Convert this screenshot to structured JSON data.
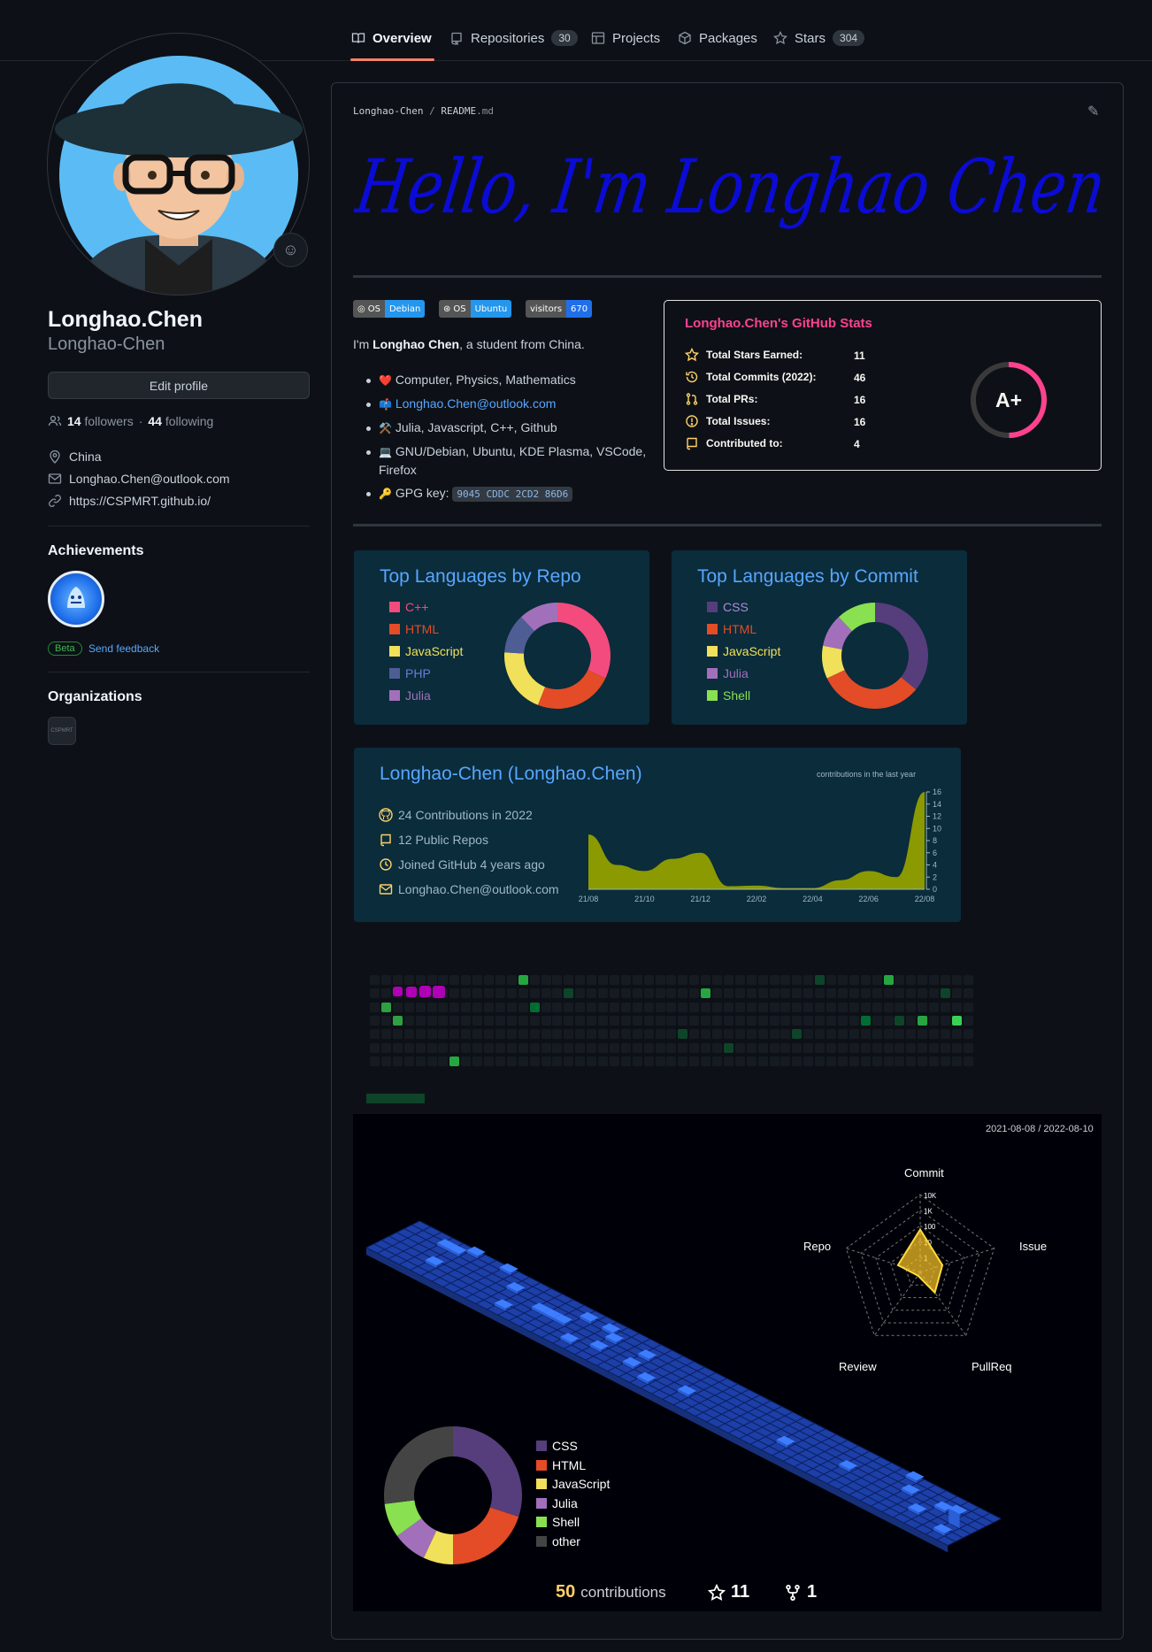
{
  "nav": {
    "tabs": [
      {
        "label": "Overview"
      },
      {
        "label": "Repositories",
        "count": "30"
      },
      {
        "label": "Projects"
      },
      {
        "label": "Packages"
      },
      {
        "label": "Stars",
        "count": "304"
      }
    ]
  },
  "profile": {
    "name": "Longhao.Chen",
    "login": "Longhao-Chen",
    "edit_label": "Edit profile",
    "followers": "14",
    "followers_label": "followers",
    "following": "44",
    "following_label": "following",
    "location": "China",
    "email": "Longhao.Chen@outlook.com",
    "website": "https://CSPMRT.github.io/"
  },
  "achievements": {
    "heading": "Achievements",
    "beta": "Beta",
    "feedback": "Send feedback"
  },
  "organizations": {
    "heading": "Organizations",
    "org_label": "CSPMRT"
  },
  "readme": {
    "path_owner": "Longhao-Chen",
    "path_sep": "/",
    "path_file": "README",
    "path_ext": ".md",
    "hello": "Hello, I'm Longhao Chen",
    "shields": [
      {
        "left": "OS",
        "right": "Debian",
        "color": "#2496ed"
      },
      {
        "left": "OS",
        "right": "Ubuntu",
        "color": "#2496ed"
      },
      {
        "left": "visitors",
        "right": "670",
        "color": "#1f6feb"
      }
    ],
    "intro_prefix": "I'm ",
    "intro_name": "Longhao Chen",
    "intro_suffix": ", a student from China.",
    "bullets": [
      {
        "emoji": "❤️",
        "text": "Computer, Physics, Mathematics"
      },
      {
        "emoji": "📫",
        "text": "Longhao.Chen@outlook.com"
      },
      {
        "emoji": "⚒️",
        "text": "Julia, Javascript, C++, Github"
      },
      {
        "emoji": "💻",
        "text": "GNU/Debian, Ubuntu, KDE Plasma, VSCode,",
        "text2": "Firefox"
      },
      {
        "emoji": "🔑",
        "text": "GPG key:",
        "code": "9045 CDDC 2CD2 86D6"
      }
    ]
  },
  "stats": {
    "title": "Longhao.Chen's GitHub Stats",
    "rows": [
      {
        "label": "Total Stars Earned:",
        "value": "11"
      },
      {
        "label": "Total Commits (2022):",
        "value": "46"
      },
      {
        "label": "Total PRs:",
        "value": "16"
      },
      {
        "label": "Total Issues:",
        "value": "16"
      },
      {
        "label": "Contributed to:",
        "value": "4"
      }
    ],
    "grade": "A+",
    "accent": "#fe428e",
    "icon_color": "#ffd166"
  },
  "lang_repo": {
    "title": "Top Languages by Repo",
    "items": [
      {
        "name": "C++",
        "color": "#f34b7d",
        "value": 32
      },
      {
        "name": "HTML",
        "color": "#e34c26",
        "value": 24
      },
      {
        "name": "JavaScript",
        "color": "#f1e05a",
        "value": 20
      },
      {
        "name": "PHP",
        "color": "#4f5d95",
        "value": 12
      },
      {
        "name": "Julia",
        "color": "#a270ba",
        "value": 12
      }
    ]
  },
  "lang_commit": {
    "title": "Top Languages by Commit",
    "items": [
      {
        "name": "CSS",
        "color": "#563d7c",
        "value": 36
      },
      {
        "name": "HTML",
        "color": "#e34c26",
        "value": 32
      },
      {
        "name": "JavaScript",
        "color": "#f1e05a",
        "value": 10
      },
      {
        "name": "Julia",
        "color": "#a270ba",
        "value": 10
      },
      {
        "name": "Shell",
        "color": "#89e051",
        "value": 12
      }
    ]
  },
  "summary": {
    "title": "Longhao-Chen (Longhao.Chen)",
    "contributions": "24 Contributions in 2022",
    "repos": "12 Public Repos",
    "joined": "Joined GitHub 4 years ago",
    "email": "Longhao.Chen@outlook.com",
    "chart_caption": "contributions in the last year"
  },
  "chart_data": {
    "type": "area",
    "title": "contributions in the last year",
    "x": [
      "21/08",
      "21/09",
      "21/10",
      "21/11",
      "21/12",
      "22/01",
      "22/02",
      "22/03",
      "22/04",
      "22/05",
      "22/06",
      "22/07",
      "22/08"
    ],
    "values": [
      9,
      4,
      3,
      5,
      6,
      0.5,
      0.6,
      0.2,
      0.2,
      1.5,
      3,
      2,
      16
    ],
    "xticks": [
      "21/08",
      "21/10",
      "21/12",
      "22/02",
      "22/04",
      "22/06",
      "22/08"
    ],
    "yticks": [
      0,
      2,
      4,
      6,
      8,
      10,
      12,
      14,
      16
    ],
    "ylim": [
      0,
      16
    ],
    "color": "#8a9a00"
  },
  "profile3d": {
    "date_range": "2021-08-08 / 2022-08-10",
    "radar_labels": {
      "commit": "Commit",
      "issue": "Issue",
      "pullreq": "PullReq",
      "review": "Review",
      "repo": "Repo"
    },
    "radar_ticks": [
      "10K",
      "1K",
      "100",
      "10",
      "1"
    ],
    "langs": [
      {
        "name": "CSS",
        "color": "#563d7c",
        "value": 30
      },
      {
        "name": "HTML",
        "color": "#e34c26",
        "value": 20
      },
      {
        "name": "JavaScript",
        "color": "#f1e05a",
        "value": 7
      },
      {
        "name": "Julia",
        "color": "#a270ba",
        "value": 8
      },
      {
        "name": "Shell",
        "color": "#89e051",
        "value": 8
      },
      {
        "name": "other",
        "color": "#444444",
        "value": 27
      }
    ],
    "contributions": "50",
    "contributions_label": "contributions",
    "stars": "11",
    "forks": "1"
  }
}
